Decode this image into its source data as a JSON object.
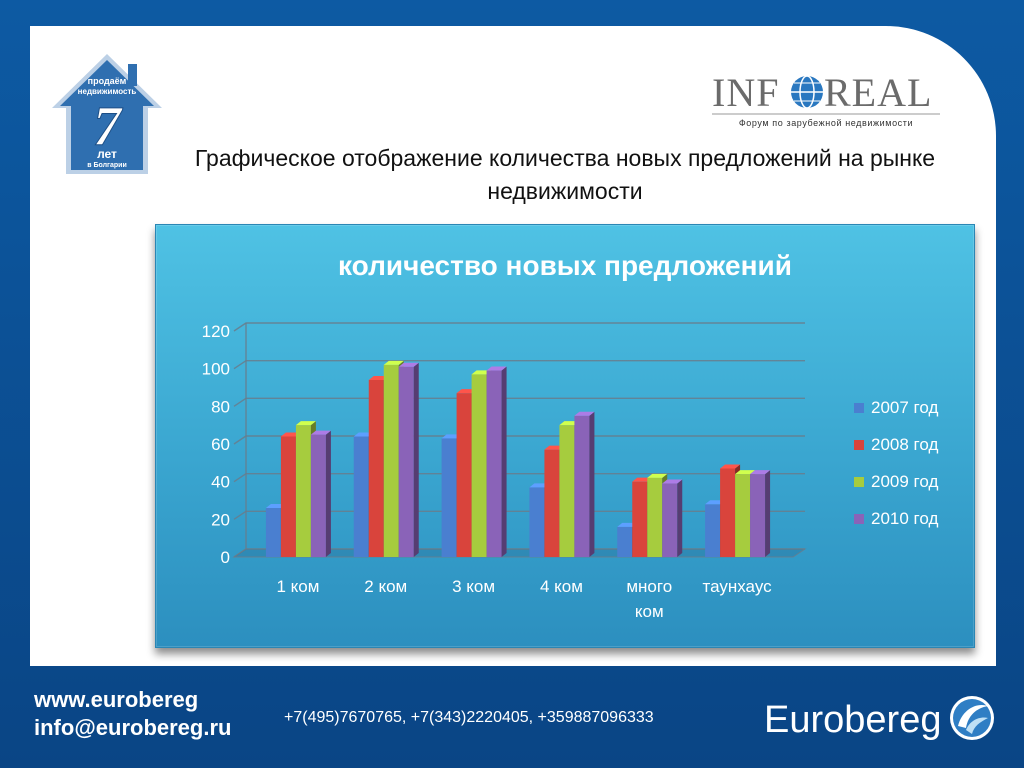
{
  "logo_house": {
    "line1": "продаём",
    "line2": "недвижимость",
    "number": "7",
    "line3": "лет",
    "line4": "в Болгарии"
  },
  "logo_inforeal": {
    "name_left": "INF",
    "name_right": "REAL",
    "tagline": "Форум по зарубежной недвижимости"
  },
  "slide_title": "Графическое отображение количества новых предложений на рынке недвижимости",
  "chart_data": {
    "type": "bar",
    "title": "количество новых предложений",
    "categories": [
      "1 ком",
      "2 ком",
      "3 ком",
      "4 ком",
      "много ком",
      "таунхаус"
    ],
    "series": [
      {
        "name": "2007 год",
        "values": [
          26,
          64,
          63,
          37,
          16,
          28
        ]
      },
      {
        "name": "2008 год",
        "values": [
          64,
          94,
          87,
          57,
          40,
          47
        ]
      },
      {
        "name": "2009 год",
        "values": [
          70,
          102,
          97,
          70,
          42,
          44
        ]
      },
      {
        "name": "2010 год",
        "values": [
          65,
          101,
          99,
          75,
          39,
          44
        ]
      }
    ],
    "ylim": [
      0,
      120
    ],
    "yticks": [
      0,
      20,
      40,
      60,
      80,
      100,
      120
    ],
    "grid": true,
    "legend_position": "right",
    "colors": {
      "2007 год": "#4a7fd0",
      "2008 год": "#d9443c",
      "2009 год": "#a6cc3e",
      "2010 год": "#8a63b8"
    }
  },
  "footer": {
    "website": "www.eurobereg",
    "email": "info@eurobereg.ru",
    "phones": "+7(495)7670765, +7(343)2220405, +359887096333",
    "brand": "Eurobereg"
  }
}
